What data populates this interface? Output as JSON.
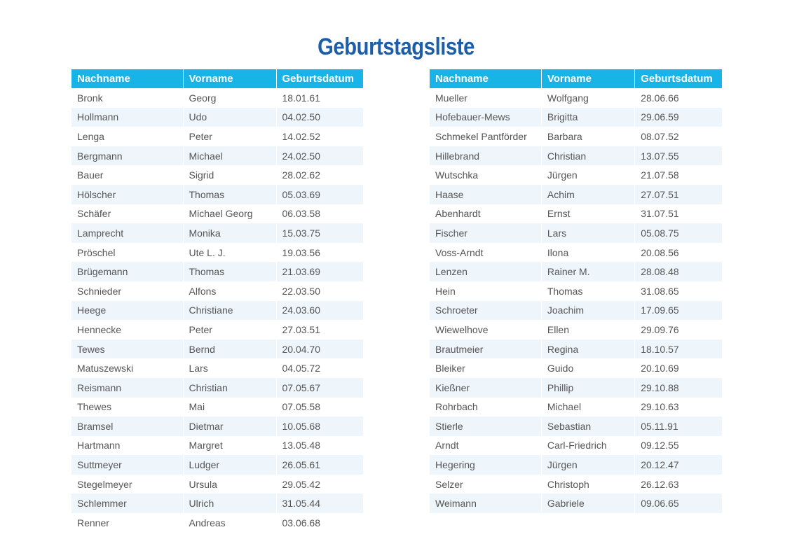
{
  "title": "Geburtstagsliste",
  "headers": {
    "last_name": "Nachname",
    "first_name": "Vorname",
    "birthdate": "Geburtsdatum"
  },
  "left_table": [
    {
      "last": "Bronk",
      "first": "Georg",
      "date": "18.01.61"
    },
    {
      "last": "Hollmann",
      "first": "Udo",
      "date": "04.02.50"
    },
    {
      "last": "Lenga",
      "first": "Peter",
      "date": "14.02.52"
    },
    {
      "last": "Bergmann",
      "first": "Michael",
      "date": "24.02.50"
    },
    {
      "last": "Bauer",
      "first": "Sigrid",
      "date": "28.02.62"
    },
    {
      "last": "Hölscher",
      "first": "Thomas",
      "date": "05.03.69"
    },
    {
      "last": "Schäfer",
      "first": "Michael Georg",
      "date": "06.03.58"
    },
    {
      "last": "Lamprecht",
      "first": "Monika",
      "date": "15.03.75"
    },
    {
      "last": "Pröschel",
      "first": "Ute L. J.",
      "date": "19.03.56"
    },
    {
      "last": "Brügemann",
      "first": "Thomas",
      "date": "21.03.69"
    },
    {
      "last": "Schnieder",
      "first": "Alfons",
      "date": "22.03.50"
    },
    {
      "last": "Heege",
      "first": "Christiane",
      "date": "24.03.60"
    },
    {
      "last": "Hennecke",
      "first": "Peter",
      "date": "27.03.51"
    },
    {
      "last": "Tewes",
      "first": "Bernd",
      "date": "20.04.70"
    },
    {
      "last": "Matuszewski",
      "first": "Lars",
      "date": "04.05.72"
    },
    {
      "last": "Reismann",
      "first": "Christian",
      "date": "07.05.67"
    },
    {
      "last": "Thewes",
      "first": "Mai",
      "date": "07.05.58"
    },
    {
      "last": "Bramsel",
      "first": "Dietmar",
      "date": "10.05.68"
    },
    {
      "last": "Hartmann",
      "first": "Margret",
      "date": "13.05.48"
    },
    {
      "last": "Suttmeyer",
      "first": "Ludger",
      "date": "26.05.61"
    },
    {
      "last": "Stegelmeyer",
      "first": "Ursula",
      "date": "29.05.42"
    },
    {
      "last": "Schlemmer",
      "first": "Ulrich",
      "date": "31.05.44"
    },
    {
      "last": "Renner",
      "first": "Andreas",
      "date": "03.06.68"
    }
  ],
  "right_table": [
    {
      "last": "Mueller",
      "first": "Wolfgang",
      "date": "28.06.66"
    },
    {
      "last": "Hofebauer-Mews",
      "first": "Brigitta",
      "date": "29.06.59"
    },
    {
      "last": "Schmekel Pantförder",
      "first": "Barbara",
      "date": "08.07.52"
    },
    {
      "last": "Hillebrand",
      "first": "Christian",
      "date": "13.07.55"
    },
    {
      "last": "Wutschka",
      "first": "Jürgen",
      "date": "21.07.58"
    },
    {
      "last": "Haase",
      "first": "Achim",
      "date": "27.07.51"
    },
    {
      "last": "Abenhardt",
      "first": "Ernst",
      "date": "31.07.51"
    },
    {
      "last": "Fischer",
      "first": "Lars",
      "date": "05.08.75"
    },
    {
      "last": "Voss-Arndt",
      "first": "Ilona",
      "date": "20.08.56"
    },
    {
      "last": "Lenzen",
      "first": "Rainer M.",
      "date": "28.08.48"
    },
    {
      "last": "Hein",
      "first": "Thomas",
      "date": "31.08.65"
    },
    {
      "last": "Schroeter",
      "first": "Joachim",
      "date": "17.09.65"
    },
    {
      "last": "Wiewelhove",
      "first": "Ellen",
      "date": "29.09.76"
    },
    {
      "last": "Brautmeier",
      "first": "Regina",
      "date": "18.10.57"
    },
    {
      "last": "Bleiker",
      "first": "Guido",
      "date": "20.10.69"
    },
    {
      "last": "Kießner",
      "first": "Phillip",
      "date": "29.10.88"
    },
    {
      "last": "Rohrbach",
      "first": "Michael",
      "date": "29.10.63"
    },
    {
      "last": "Stierle",
      "first": "Sebastian",
      "date": "05.11.91"
    },
    {
      "last": "Arndt",
      "first": "Carl-Friedrich",
      "date": "09.12.55"
    },
    {
      "last": "Hegering",
      "first": "Jürgen",
      "date": "20.12.47"
    },
    {
      "last": "Selzer",
      "first": "Christoph",
      "date": "26.12.63"
    },
    {
      "last": "Weimann",
      "first": "Gabriele",
      "date": "09.06.65"
    }
  ],
  "colors": {
    "title": "#1c5fa8",
    "header_bg": "#18b4e8",
    "header_text": "#ffffff",
    "row_alt": "#eef6fb",
    "cell_text": "#555555"
  }
}
